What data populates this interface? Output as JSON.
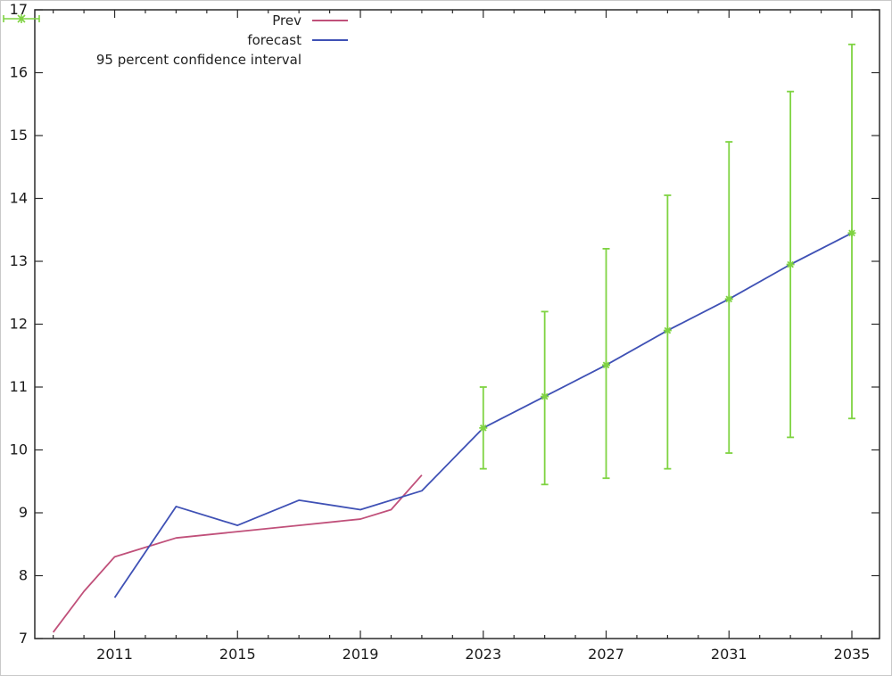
{
  "colors": {
    "prev": "#c0507a",
    "forecast": "#3f51b5",
    "ci": "#7fd342",
    "frame": "#2b2b2b",
    "text": "#1a1a1a"
  },
  "chart_data": {
    "type": "line",
    "title": "",
    "xlabel": "",
    "ylabel": "",
    "xlim": [
      2008.4,
      2035.9
    ],
    "ylim": [
      7,
      17
    ],
    "xticks": [
      2011,
      2015,
      2019,
      2023,
      2027,
      2031,
      2035
    ],
    "yticks": [
      7,
      8,
      9,
      10,
      11,
      12,
      13,
      14,
      15,
      16,
      17
    ],
    "minor_x_step": 1,
    "grid": false,
    "legend_position": "top-left-inside",
    "series": [
      {
        "name": "Prev",
        "color_key": "prev",
        "x": [
          2009,
          2010,
          2011,
          2012,
          2013,
          2015,
          2017,
          2019,
          2020,
          2021
        ],
        "y": [
          7.1,
          7.75,
          8.3,
          8.45,
          8.6,
          8.7,
          8.8,
          8.9,
          9.05,
          9.6
        ]
      },
      {
        "name": "forecast",
        "color_key": "forecast",
        "x": [
          2011,
          2013,
          2015,
          2017,
          2019,
          2021,
          2023,
          2025,
          2027,
          2029,
          2031,
          2033,
          2035
        ],
        "y": [
          7.65,
          9.1,
          8.8,
          9.2,
          9.05,
          9.35,
          10.35,
          10.85,
          11.35,
          11.9,
          12.4,
          12.95,
          13.45
        ]
      }
    ],
    "error_bars": {
      "name": "95 percent confidence interval",
      "color_key": "ci",
      "x": [
        2023,
        2025,
        2027,
        2029,
        2031,
        2033,
        2035
      ],
      "center": [
        10.35,
        10.85,
        11.35,
        11.9,
        12.4,
        12.95,
        13.45
      ],
      "low": [
        9.7,
        9.45,
        9.55,
        9.7,
        9.95,
        10.2,
        10.5
      ],
      "high": [
        11.0,
        12.2,
        13.2,
        14.05,
        14.9,
        15.7,
        16.45
      ]
    }
  }
}
